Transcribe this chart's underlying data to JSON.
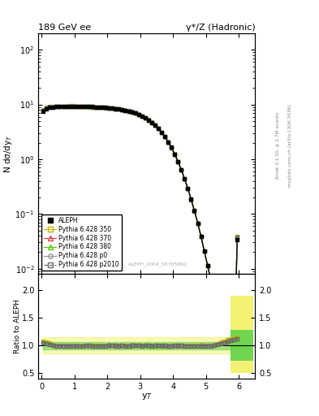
{
  "title_left": "189 GeV ee",
  "title_right": "γ*/Z (Hadronic)",
  "ylabel_main": "N dσ/dy$_T$",
  "ylabel_ratio": "Ratio to ALEPH",
  "xlabel": "y$_T$",
  "right_label_top": "Rivet 3.1.10, ≥ 2.7M events",
  "right_label_bot": "mcplots.cern.ch [arXiv:1306.3436]",
  "analysis_label": "ALEPH_2004_S5765862",
  "main_ylim_log": [
    0.008,
    200
  ],
  "ratio_ylim": [
    0.4,
    2.3
  ],
  "xlim": [
    -0.1,
    6.5
  ],
  "aleph_label": "ALEPH",
  "pythia_350_color": "#bbbb00",
  "pythia_350_label": "Pythia 6.428 350",
  "pythia_370_color": "#dd4444",
  "pythia_370_label": "Pythia 6.428 370",
  "pythia_380_color": "#55cc00",
  "pythia_380_label": "Pythia 6.428 380",
  "pythia_p0_color": "#999999",
  "pythia_p0_label": "Pythia 6.428 p0",
  "pythia_p2010_color": "#666666",
  "pythia_p2010_label": "Pythia 6.428 p2010",
  "ratio_band_yellow": "#eeee44",
  "ratio_band_green": "#44cc44"
}
